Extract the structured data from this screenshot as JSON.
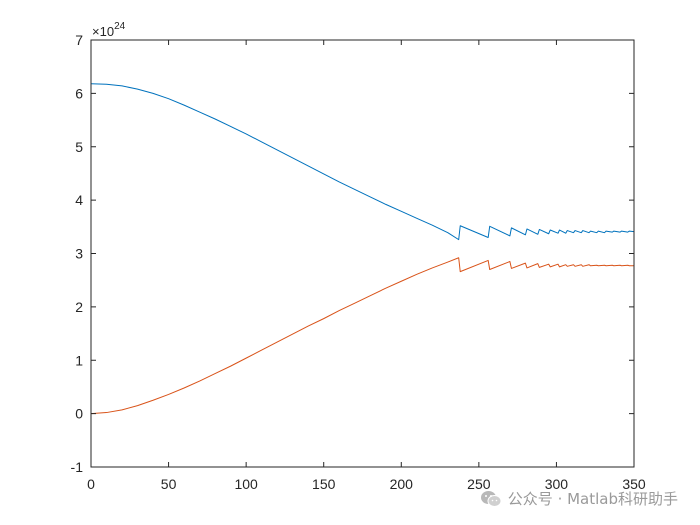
{
  "chart_data": {
    "type": "line",
    "title": "",
    "xlabel": "",
    "ylabel": "",
    "xlim": [
      0,
      350
    ],
    "ylim": [
      -1,
      7
    ],
    "y_multiplier": "×10",
    "y_multiplier_exponent": "24",
    "x_ticks": [
      0,
      50,
      100,
      150,
      200,
      250,
      300,
      350
    ],
    "x_tick_labels": [
      "0",
      "50",
      "100",
      "150",
      "200",
      "250",
      "300",
      "350"
    ],
    "y_ticks": [
      -1,
      0,
      1,
      2,
      3,
      4,
      5,
      6,
      7
    ],
    "y_tick_labels": [
      "-1",
      "0",
      "1",
      "2",
      "3",
      "4",
      "5",
      "6",
      "7"
    ],
    "grid": false,
    "series": [
      {
        "color": "#0072BD",
        "x": [
          0,
          10,
          20,
          30,
          40,
          50,
          60,
          70,
          80,
          90,
          100,
          110,
          120,
          130,
          140,
          150,
          160,
          170,
          180,
          190,
          200,
          210,
          220,
          230,
          237,
          238,
          256,
          257,
          270,
          271,
          280,
          281,
          288,
          289,
          295,
          296,
          301,
          302,
          306,
          307,
          311,
          312,
          316,
          317,
          321,
          322,
          326,
          327,
          331,
          332,
          336,
          337,
          341,
          342,
          346,
          347,
          350
        ],
        "y": [
          6.18,
          6.17,
          6.14,
          6.08,
          6.0,
          5.9,
          5.78,
          5.65,
          5.52,
          5.38,
          5.24,
          5.09,
          4.94,
          4.79,
          4.64,
          4.49,
          4.34,
          4.2,
          4.06,
          3.92,
          3.79,
          3.66,
          3.53,
          3.39,
          3.26,
          3.52,
          3.3,
          3.51,
          3.33,
          3.48,
          3.35,
          3.46,
          3.36,
          3.45,
          3.37,
          3.44,
          3.38,
          3.44,
          3.38,
          3.43,
          3.39,
          3.43,
          3.39,
          3.43,
          3.39,
          3.42,
          3.39,
          3.42,
          3.39,
          3.42,
          3.4,
          3.42,
          3.4,
          3.42,
          3.4,
          3.42,
          3.41
        ]
      },
      {
        "color": "#D95319",
        "x": [
          0,
          10,
          20,
          30,
          40,
          50,
          60,
          70,
          80,
          90,
          100,
          110,
          120,
          130,
          140,
          150,
          160,
          170,
          180,
          190,
          200,
          210,
          220,
          230,
          237,
          238,
          256,
          257,
          270,
          271,
          280,
          281,
          288,
          289,
          295,
          296,
          301,
          302,
          306,
          307,
          311,
          312,
          316,
          317,
          321,
          322,
          326,
          327,
          331,
          332,
          336,
          337,
          341,
          342,
          346,
          347,
          350
        ],
        "y": [
          0.0,
          0.02,
          0.07,
          0.15,
          0.25,
          0.36,
          0.48,
          0.61,
          0.75,
          0.89,
          1.04,
          1.19,
          1.34,
          1.49,
          1.64,
          1.78,
          1.93,
          2.07,
          2.21,
          2.35,
          2.48,
          2.61,
          2.73,
          2.84,
          2.92,
          2.66,
          2.87,
          2.7,
          2.85,
          2.72,
          2.82,
          2.73,
          2.81,
          2.74,
          2.8,
          2.75,
          2.8,
          2.75,
          2.79,
          2.76,
          2.79,
          2.76,
          2.79,
          2.76,
          2.79,
          2.77,
          2.78,
          2.77,
          2.78,
          2.77,
          2.78,
          2.77,
          2.78,
          2.77,
          2.78,
          2.77,
          2.77
        ]
      }
    ]
  },
  "watermark": {
    "text": "公众号 · Matlab科研助手",
    "icon": "wechat-icon"
  }
}
